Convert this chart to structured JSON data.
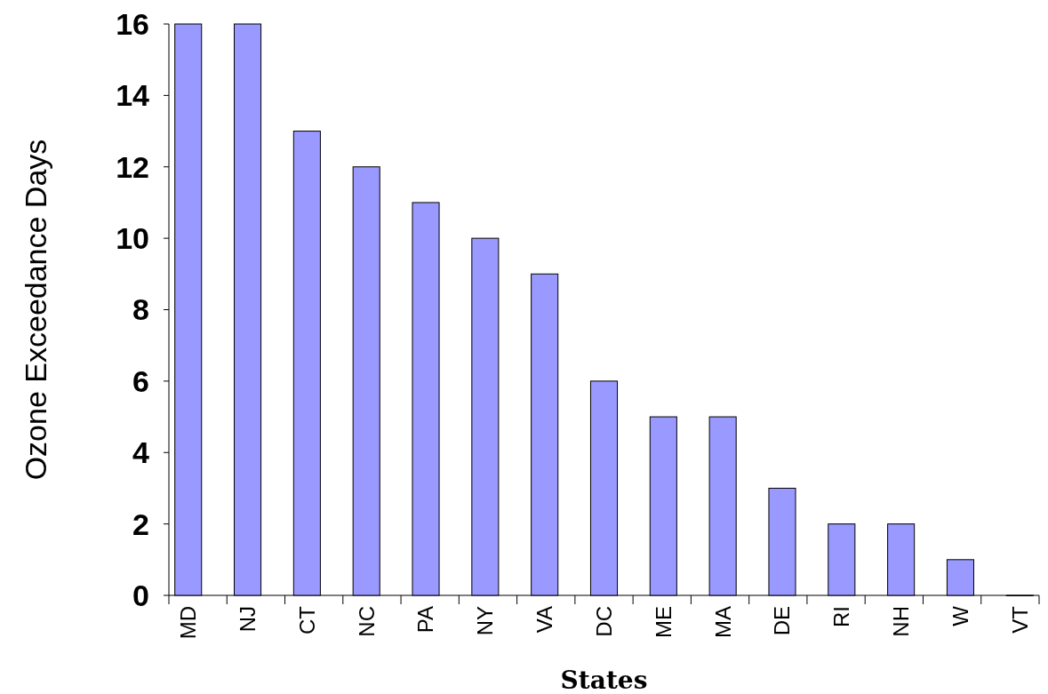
{
  "chart_data": {
    "type": "bar",
    "xlabel": "States",
    "ylabel": "Ozone Exceedance Days",
    "categories": [
      "MD",
      "NJ",
      "CT",
      "NC",
      "PA",
      "NY",
      "VA",
      "DC",
      "ME",
      "MA",
      "DE",
      "RI",
      "NH",
      "W",
      "VT"
    ],
    "values": [
      16,
      16,
      13,
      12,
      11,
      10,
      9,
      6,
      5,
      5,
      3,
      2,
      2,
      1,
      0
    ],
    "color": "#9999ff",
    "ylim": [
      0,
      16
    ],
    "yticks": [
      0,
      2,
      4,
      6,
      8,
      10,
      12,
      14,
      16
    ],
    "grid": false
  }
}
